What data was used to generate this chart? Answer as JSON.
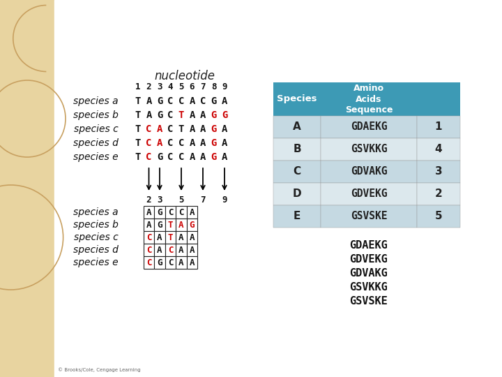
{
  "background_left_color": "#e8d4a0",
  "nucleotide_label": "nucleotide",
  "positions": [
    "1",
    "2",
    "3",
    "4",
    "5",
    "6",
    "7",
    "8",
    "9"
  ],
  "species_labels": [
    "species a",
    "species b",
    "species c",
    "species d",
    "species e"
  ],
  "sequences_top": [
    [
      "T",
      "A",
      "G",
      "C",
      "C",
      "A",
      "C",
      "G",
      "A"
    ],
    [
      "T",
      "A",
      "G",
      "C",
      "T",
      "A",
      "A",
      "G",
      "G"
    ],
    [
      "T",
      "C",
      "A",
      "C",
      "T",
      "A",
      "A",
      "G",
      "A"
    ],
    [
      "T",
      "C",
      "A",
      "C",
      "C",
      "A",
      "A",
      "G",
      "A"
    ],
    [
      "T",
      "C",
      "G",
      "C",
      "C",
      "A",
      "A",
      "G",
      "A"
    ]
  ],
  "red_positions_top": [
    [],
    [
      4,
      7,
      8
    ],
    [
      1,
      2,
      7
    ],
    [
      1,
      2,
      7
    ],
    [
      1,
      7
    ]
  ],
  "arrow_col_indices": [
    1,
    2,
    4,
    6,
    8
  ],
  "arrow_labels": [
    "2",
    "3",
    "5",
    "7",
    "9"
  ],
  "sequences_bottom": [
    [
      "A",
      "G",
      "C",
      "C",
      "A"
    ],
    [
      "A",
      "G",
      "T",
      "A",
      "G"
    ],
    [
      "C",
      "A",
      "T",
      "A",
      "A"
    ],
    [
      "C",
      "A",
      "C",
      "A",
      "A"
    ],
    [
      "C",
      "G",
      "C",
      "A",
      "A"
    ]
  ],
  "red_positions_bottom": [
    [],
    [
      2,
      3,
      4
    ],
    [
      0,
      2
    ],
    [
      0,
      2
    ],
    [
      0
    ]
  ],
  "table_header_color": "#3d9ab5",
  "table_row_color_odd": "#c5d9e2",
  "table_row_color_even": "#dce8ed",
  "table_species": [
    "A",
    "B",
    "C",
    "D",
    "E"
  ],
  "table_sequences": [
    "GDAEKG",
    "GSVKKG",
    "GDVAKG",
    "GDVEKG",
    "GSVSKE"
  ],
  "table_numbers": [
    "1",
    "4",
    "3",
    "2",
    "5"
  ],
  "bottom_sequences": [
    "GDAEKG",
    "GDVEKG",
    "GDVAKG",
    "GSVKKG",
    "GSVSKE"
  ],
  "copyright_text": "© Brooks/Cole, Cengage Learning"
}
